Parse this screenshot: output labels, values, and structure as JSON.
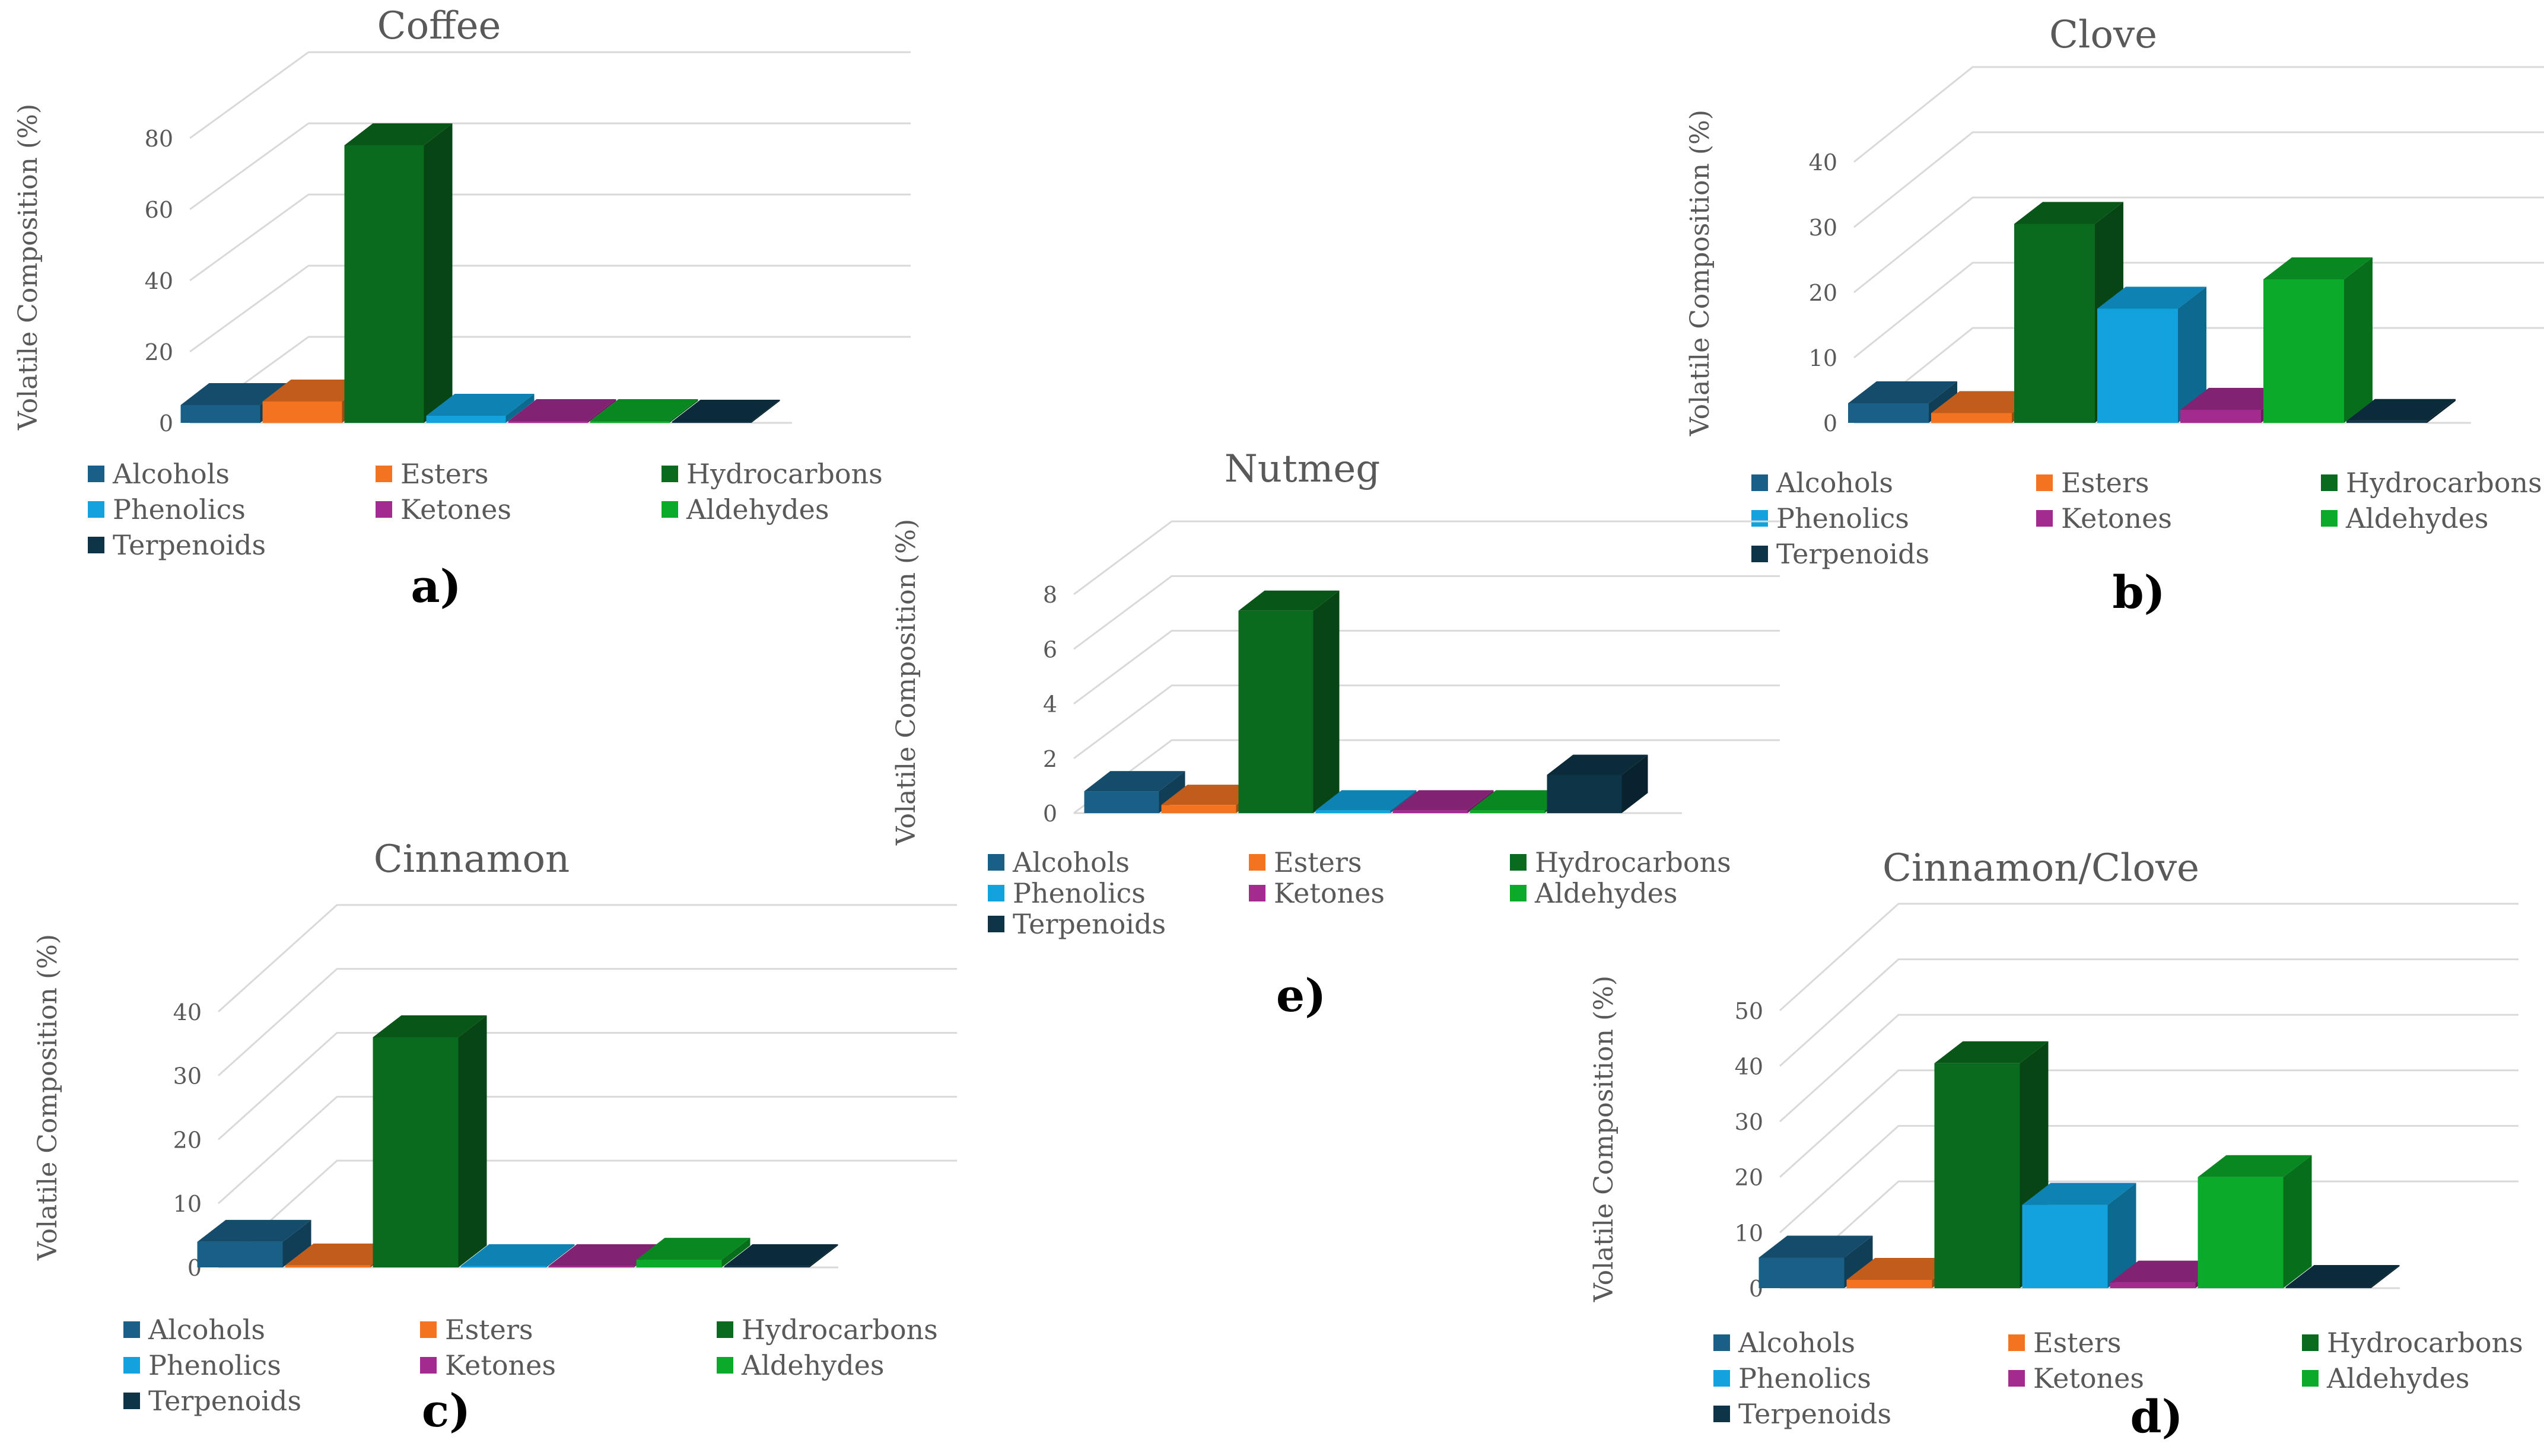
{
  "colors": {
    "Alcohols": "#1A5F86",
    "Esters": "#F37321",
    "Hydrocarbons": "#0A6B1E",
    "Phenolics": "#12A2DE",
    "Ketones": "#A32B8F",
    "Aldehydes": "#0BAA2A",
    "Terpenoids": "#0E3448"
  },
  "chart_data": [
    {
      "type": "bar",
      "title": "Coffee",
      "panel_label": "a)",
      "ylabel": "Volatile Composition (%)",
      "ylim": [
        0,
        90
      ],
      "yticks": [
        "0",
        "20",
        "40",
        "60",
        "80"
      ],
      "categories": [
        "Alcohols",
        "Esters",
        "Hydrocarbons",
        "Phenolics",
        "Ketones",
        "Aldehydes",
        "Terpenoids"
      ],
      "values": [
        5,
        6,
        78,
        2,
        0.5,
        0.5,
        0.3
      ],
      "legend": [
        "Alcohols",
        "Esters",
        "Hydrocarbons",
        "Phenolics",
        "Ketones",
        "Aldehydes",
        "Terpenoids"
      ],
      "grid": true,
      "legend_position": "bottom"
    },
    {
      "type": "bar",
      "title": "Clove",
      "panel_label": "b)",
      "ylabel": "Volatile Composition (%)",
      "ylim": [
        0,
        45
      ],
      "yticks": [
        "0",
        "10",
        "20",
        "30",
        "40"
      ],
      "categories": [
        "Alcohols",
        "Esters",
        "Hydrocarbons",
        "Phenolics",
        "Ketones",
        "Aldehydes",
        "Terpenoids"
      ],
      "values": [
        3,
        1.5,
        30.5,
        17.5,
        2,
        22,
        0.3
      ],
      "legend": [
        "Alcohols",
        "Esters",
        "Hydrocarbons",
        "Phenolics",
        "Ketones",
        "Aldehydes",
        "Terpenoids"
      ],
      "grid": true,
      "legend_position": "bottom"
    },
    {
      "type": "bar",
      "title": "Nutmeg",
      "panel_label": "e)",
      "ylabel": "Volatile Composition (%)",
      "ylim": [
        0,
        9
      ],
      "yticks": [
        "0",
        "2",
        "4",
        "6",
        "8"
      ],
      "categories": [
        "Alcohols",
        "Esters",
        "Hydrocarbons",
        "Phenolics",
        "Ketones",
        "Aldehydes",
        "Terpenoids"
      ],
      "values": [
        0.8,
        0.3,
        7.4,
        0.1,
        0.1,
        0.1,
        1.4
      ],
      "legend": [
        "Alcohols",
        "Esters",
        "Hydrocarbons",
        "Phenolics",
        "Ketones",
        "Aldehydes",
        "Terpenoids"
      ],
      "grid": true,
      "legend_position": "bottom"
    },
    {
      "type": "bar",
      "title": "Cinnamon",
      "panel_label": "c)",
      "ylabel": "Volatile Composition (%)",
      "ylim": [
        0,
        45
      ],
      "yticks": [
        "0",
        "10",
        "20",
        "30",
        "40"
      ],
      "categories": [
        "Alcohols",
        "Esters",
        "Hydrocarbons",
        "Phenolics",
        "Ketones",
        "Aldehydes",
        "Terpenoids"
      ],
      "values": [
        4,
        0.3,
        36,
        0.2,
        0.2,
        1.2,
        0.2
      ],
      "legend": [
        "Alcohols",
        "Esters",
        "Hydrocarbons",
        "Phenolics",
        "Ketones",
        "Aldehydes",
        "Terpenoids"
      ],
      "grid": true,
      "legend_position": "bottom"
    },
    {
      "type": "bar",
      "title": "Cinnamon/Clove",
      "panel_label": "d)",
      "ylabel": "Volatile Composition (%)",
      "ylim": [
        0,
        55
      ],
      "yticks": [
        "0",
        "10",
        "20",
        "30",
        "40",
        "50"
      ],
      "categories": [
        "Alcohols",
        "Esters",
        "Hydrocarbons",
        "Phenolics",
        "Ketones",
        "Aldehydes",
        "Terpenoids"
      ],
      "values": [
        5.5,
        1.5,
        40.5,
        15,
        1,
        20,
        0.2
      ],
      "legend": [
        "Alcohols",
        "Esters",
        "Hydrocarbons",
        "Phenolics",
        "Ketones",
        "Aldehydes",
        "Terpenoids"
      ],
      "grid": true,
      "legend_position": "bottom"
    }
  ]
}
